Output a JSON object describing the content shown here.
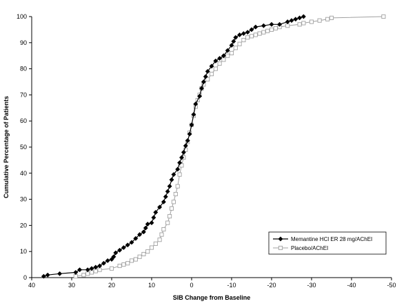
{
  "chart_data": {
    "type": "line",
    "title": "",
    "xlabel": "SIB Change from Baseline",
    "ylabel": "Cumulative Percentage of Patients",
    "xlim": [
      40,
      -50
    ],
    "ylim": [
      0,
      100
    ],
    "x_reversed": true,
    "x_ticks": [
      "40",
      "30",
      "20",
      "10",
      "0",
      "-10",
      "-20",
      "-30",
      "-40",
      "-50"
    ],
    "y_ticks": [
      "0",
      "10",
      "20",
      "30",
      "40",
      "50",
      "60",
      "70",
      "80",
      "90",
      "100"
    ],
    "grid": false,
    "legend_position": "bottom-right",
    "series": [
      {
        "name": "Memantine HCl ER 28 mg/AChEI",
        "marker": "filled-diamond",
        "color": "#000000",
        "points": [
          [
            37,
            0.5
          ],
          [
            36,
            1
          ],
          [
            33,
            1.5
          ],
          [
            29,
            2
          ],
          [
            28,
            3
          ],
          [
            26,
            3
          ],
          [
            25,
            3.5
          ],
          [
            24,
            4
          ],
          [
            23,
            4.5
          ],
          [
            22,
            5.5
          ],
          [
            21,
            6.5
          ],
          [
            20,
            7
          ],
          [
            19.5,
            8
          ],
          [
            19,
            9.5
          ],
          [
            18,
            10.5
          ],
          [
            17,
            11.5
          ],
          [
            16,
            12.5
          ],
          [
            15,
            13.5
          ],
          [
            14,
            15
          ],
          [
            13,
            16.5
          ],
          [
            12,
            17.5
          ],
          [
            11.5,
            19
          ],
          [
            11,
            20.5
          ],
          [
            10,
            21
          ],
          [
            9.5,
            23
          ],
          [
            9,
            25
          ],
          [
            8,
            27
          ],
          [
            7,
            29
          ],
          [
            6.5,
            31
          ],
          [
            6,
            33
          ],
          [
            5.5,
            35
          ],
          [
            5,
            37.5
          ],
          [
            4.5,
            39.5
          ],
          [
            3.5,
            41.5
          ],
          [
            3,
            44
          ],
          [
            2.5,
            46
          ],
          [
            2,
            48
          ],
          [
            1.5,
            50.5
          ],
          [
            1,
            52.5
          ],
          [
            0.5,
            55
          ],
          [
            0,
            58.5
          ],
          [
            -0.5,
            62.5
          ],
          [
            -1,
            66.5
          ],
          [
            -2,
            69.5
          ],
          [
            -2.5,
            72.5
          ],
          [
            -3,
            75
          ],
          [
            -3.5,
            77
          ],
          [
            -4,
            79
          ],
          [
            -5,
            81
          ],
          [
            -6,
            83
          ],
          [
            -7,
            84
          ],
          [
            -8,
            85
          ],
          [
            -9,
            87
          ],
          [
            -10,
            89
          ],
          [
            -10.5,
            90.5
          ],
          [
            -11,
            92
          ],
          [
            -12,
            93
          ],
          [
            -13,
            93.5
          ],
          [
            -14,
            94
          ],
          [
            -15,
            95
          ],
          [
            -16,
            96
          ],
          [
            -18,
            96.5
          ],
          [
            -20,
            97
          ],
          [
            -22,
            97
          ],
          [
            -24,
            98
          ],
          [
            -25,
            98.5
          ],
          [
            -26,
            99
          ],
          [
            -27,
            99.5
          ],
          [
            -28,
            100
          ]
        ]
      },
      {
        "name": "Placebo/AChEI",
        "marker": "open-square",
        "color": "#a0a0a0",
        "points": [
          [
            29,
            0.5
          ],
          [
            27,
            1
          ],
          [
            26,
            1.5
          ],
          [
            25,
            2
          ],
          [
            24,
            2.5
          ],
          [
            23,
            3
          ],
          [
            20,
            3.5
          ],
          [
            18,
            4.5
          ],
          [
            17,
            5
          ],
          [
            16,
            5.5
          ],
          [
            15,
            6.5
          ],
          [
            14,
            7
          ],
          [
            13,
            8
          ],
          [
            12,
            9
          ],
          [
            11,
            10
          ],
          [
            10,
            11.5
          ],
          [
            9,
            13
          ],
          [
            8,
            14.5
          ],
          [
            7.5,
            16.5
          ],
          [
            7,
            18.5
          ],
          [
            6,
            21
          ],
          [
            5.5,
            23.5
          ],
          [
            5,
            26.5
          ],
          [
            4.5,
            29
          ],
          [
            4,
            32
          ],
          [
            3.5,
            35
          ],
          [
            3,
            39.5
          ],
          [
            2.5,
            43
          ],
          [
            2,
            46
          ],
          [
            1.5,
            49
          ],
          [
            1,
            52
          ],
          [
            0.5,
            55.5
          ],
          [
            0,
            58.5
          ],
          [
            -0.5,
            62
          ],
          [
            -1,
            65.5
          ],
          [
            -1.5,
            68
          ],
          [
            -2,
            70
          ],
          [
            -2.5,
            72.5
          ],
          [
            -3,
            74
          ],
          [
            -4,
            76
          ],
          [
            -5,
            78
          ],
          [
            -6,
            80
          ],
          [
            -7,
            82
          ],
          [
            -8,
            83.5
          ],
          [
            -9,
            85
          ],
          [
            -10,
            86
          ],
          [
            -11,
            88
          ],
          [
            -12,
            89.5
          ],
          [
            -13,
            91
          ],
          [
            -14,
            92
          ],
          [
            -15,
            92.5
          ],
          [
            -16,
            93
          ],
          [
            -17,
            93.5
          ],
          [
            -18,
            94
          ],
          [
            -19,
            94.5
          ],
          [
            -20,
            95
          ],
          [
            -21,
            95.5
          ],
          [
            -22,
            96
          ],
          [
            -24,
            96.5
          ],
          [
            -27,
            97
          ],
          [
            -28,
            97.5
          ],
          [
            -30,
            98
          ],
          [
            -32,
            98.5
          ],
          [
            -34,
            99
          ],
          [
            -35,
            99.5
          ],
          [
            -48,
            100
          ]
        ]
      }
    ]
  }
}
